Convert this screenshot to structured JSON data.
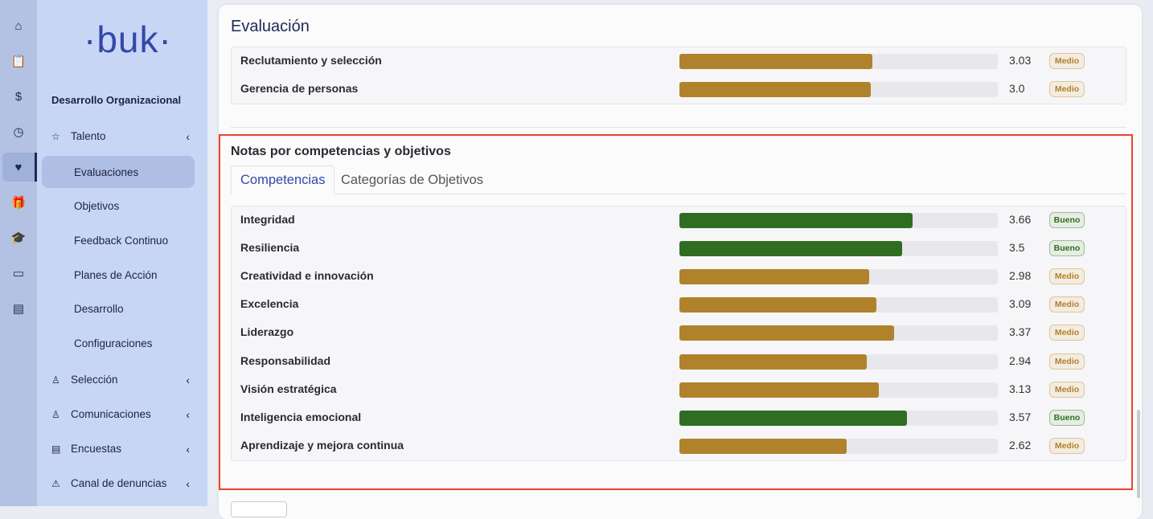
{
  "rail": {
    "icons": [
      "home-icon",
      "clipboard-clock-icon",
      "dollar-icon",
      "clock-icon",
      "hand-heart-icon",
      "gift-icon",
      "graduation-cap-icon",
      "folder-icon",
      "store-icon"
    ],
    "active": 4
  },
  "sidebar": {
    "logo": "·buk·",
    "section": "Desarrollo Organizacional",
    "talento": "Talento",
    "subitems": [
      "Evaluaciones",
      "Objetivos",
      "Feedback Continuo",
      "Planes de Acción",
      "Desarrollo",
      "Configuraciones"
    ],
    "groups": [
      {
        "label": "Selección",
        "icon": "person-check-icon"
      },
      {
        "label": "Comunicaciones",
        "icon": "person-speak-icon"
      },
      {
        "label": "Encuestas",
        "icon": "document-icon"
      },
      {
        "label": "Canal de denuncias",
        "icon": "warning-icon"
      }
    ]
  },
  "main": {
    "title": "Evaluación",
    "top_rows": [
      {
        "label": "Reclutamiento y selección",
        "value": "3.03",
        "score": 3.03,
        "badge": "Medio"
      },
      {
        "label": "Gerencia de personas",
        "value": "3.0",
        "score": 3.0,
        "badge": "Medio"
      }
    ],
    "section_title": "Notas por competencias y objetivos",
    "tabs": [
      "Competencias",
      "Categorías de Objetivos"
    ],
    "rows": [
      {
        "label": "Integridad",
        "value": "3.66",
        "score": 3.66,
        "badge": "Bueno"
      },
      {
        "label": "Resiliencia",
        "value": "3.5",
        "score": 3.5,
        "badge": "Bueno"
      },
      {
        "label": "Creatividad e innovación",
        "value": "2.98",
        "score": 2.98,
        "badge": "Medio"
      },
      {
        "label": "Excelencia",
        "value": "3.09",
        "score": 3.09,
        "badge": "Medio"
      },
      {
        "label": "Liderazgo",
        "value": "3.37",
        "score": 3.37,
        "badge": "Medio"
      },
      {
        "label": "Responsabilidad",
        "value": "2.94",
        "score": 2.94,
        "badge": "Medio"
      },
      {
        "label": "Visión estratégica",
        "value": "3.13",
        "score": 3.13,
        "badge": "Medio"
      },
      {
        "label": "Inteligencia emocional",
        "value": "3.57",
        "score": 3.57,
        "badge": "Bueno"
      },
      {
        "label": "Aprendizaje y mejora continua",
        "value": "2.62",
        "score": 2.62,
        "badge": "Medio"
      }
    ],
    "score_max": 5
  },
  "colors": {
    "bueno": "#2f6e22",
    "medio": "#b0822c",
    "highlight": "#e8432c"
  }
}
